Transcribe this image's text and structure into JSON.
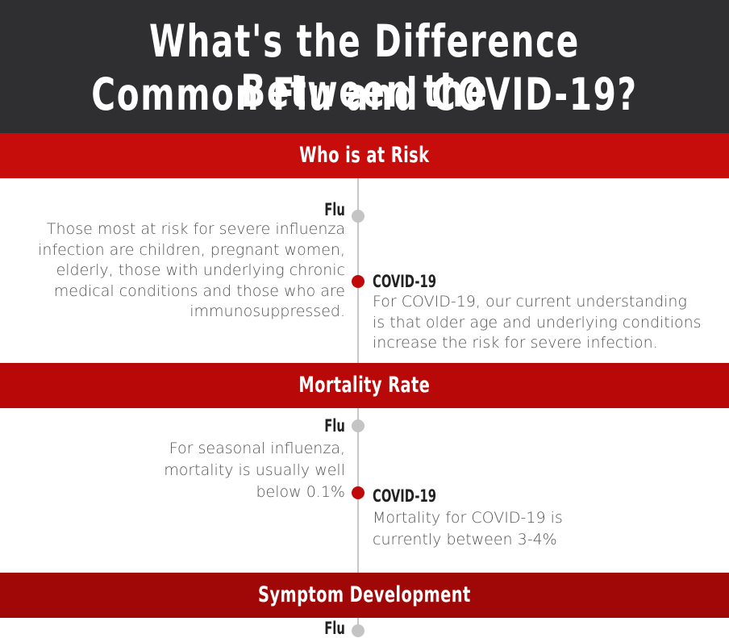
{
  "header": {
    "title_line1": "What's the Difference Between the",
    "title_line2": "Common Flu and COVID-19?"
  },
  "sections": [
    {
      "heading": "Who is at Risk",
      "flu": {
        "label": "Flu",
        "lines": [
          "Those most at risk for severe influenza",
          "infection are children, pregnant women,",
          "elderly, those with underlying chronic",
          "medical conditions and those who are",
          "immunosuppressed."
        ]
      },
      "covid": {
        "label": "COVID-19",
        "lines": [
          "For COVID-19, our current understanding",
          "is that older age and underlying conditions",
          "increase the risk for severe infection."
        ]
      }
    },
    {
      "heading": "Mortality Rate",
      "flu": {
        "label": "Flu",
        "lines": [
          "For seasonal influenza,",
          "mortality is usually well",
          "below 0.1%"
        ]
      },
      "covid": {
        "label": "COVID-19",
        "lines": [
          "Mortality for COVID-19 is",
          "currently between 3-4%"
        ]
      }
    },
    {
      "heading": "Symptom Development",
      "flu": {
        "label": "Flu"
      }
    }
  ],
  "colors": {
    "header_bg": "#2f2e30",
    "band_red": "#c70c0c",
    "dot_grey": "#c4c4c4",
    "dot_red": "#c00a0a"
  }
}
